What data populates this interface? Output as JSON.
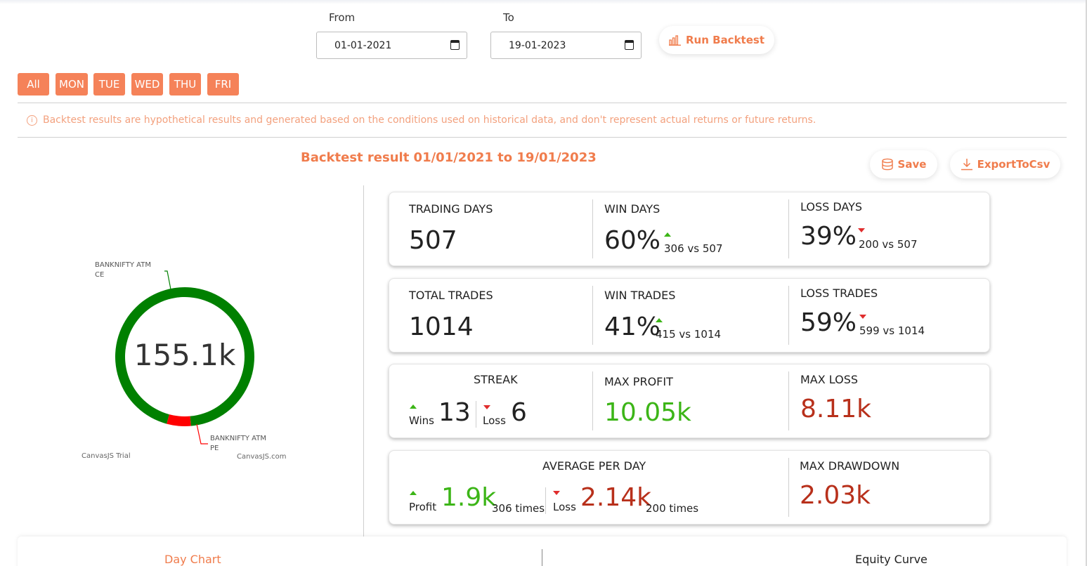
{
  "filters": {
    "from_label": "From",
    "from_value": "01-01-2021",
    "to_label": "To",
    "to_value": "19-01-2023",
    "run_label": "Run Backtest"
  },
  "days": [
    "All",
    "MON",
    "TUE",
    "WED",
    "THU",
    "FRI"
  ],
  "disclaimer": "Backtest results are hypothetical results and generated based on the conditions used on historical data, and don't represent actual returns or future returns.",
  "result_title": "Backtest result 01/01/2021 to 19/01/2023",
  "actions": {
    "save": "Save",
    "export": "ExportToCsv"
  },
  "chart": {
    "center_value": "155.1k",
    "label_ce_1": "BANKNIFTY ATM",
    "label_ce_2": "CE",
    "label_pe_1": "BANKNIFTY ATM",
    "label_pe_2": "PE",
    "watermark_left": "CanvasJS Trial",
    "watermark_right": "CanvasJS.com",
    "colors": {
      "ce": "#008000",
      "pe": "#ff0000"
    }
  },
  "chart_data": {
    "type": "pie",
    "categories": [
      "BANKNIFTY ATM CE",
      "BANKNIFTY ATM PE"
    ],
    "values": [
      0.944,
      0.056
    ],
    "title": "155.1k"
  },
  "stats": {
    "trading_days": {
      "label": "TRADING DAYS",
      "value": "507"
    },
    "win_days": {
      "label": "WIN DAYS",
      "value": "60%",
      "sub": "306 vs 507"
    },
    "loss_days": {
      "label": "LOSS DAYS",
      "value": "39%",
      "sub": "200 vs 507"
    },
    "total_trades": {
      "label": "TOTAL TRADES",
      "value": "1014"
    },
    "win_trades": {
      "label": "WIN TRADES",
      "value": "41%",
      "sub": "415 vs 1014"
    },
    "loss_trades": {
      "label": "LOSS TRADES",
      "value": "59%",
      "sub": "599 vs 1014"
    },
    "streak": {
      "label": "STREAK",
      "wins_label": "Wins",
      "wins_value": "13",
      "loss_label": "Loss",
      "loss_value": "6"
    },
    "max_profit": {
      "label": "MAX PROFIT",
      "value": "10.05k"
    },
    "max_loss": {
      "label": "MAX LOSS",
      "value": "8.11k"
    },
    "avg_per_day": {
      "label": "AVERAGE PER DAY",
      "profit_label": "Profit",
      "profit_value": "1.9k",
      "profit_times": "306 times",
      "loss_label": "Loss",
      "loss_value": "2.14k",
      "loss_times": "200 times"
    },
    "max_drawdown": {
      "label": "MAX DRAWDOWN",
      "value": "2.03k"
    }
  },
  "bottom": {
    "day_chart": "Day Chart",
    "equity_curve": "Equity Curve"
  }
}
